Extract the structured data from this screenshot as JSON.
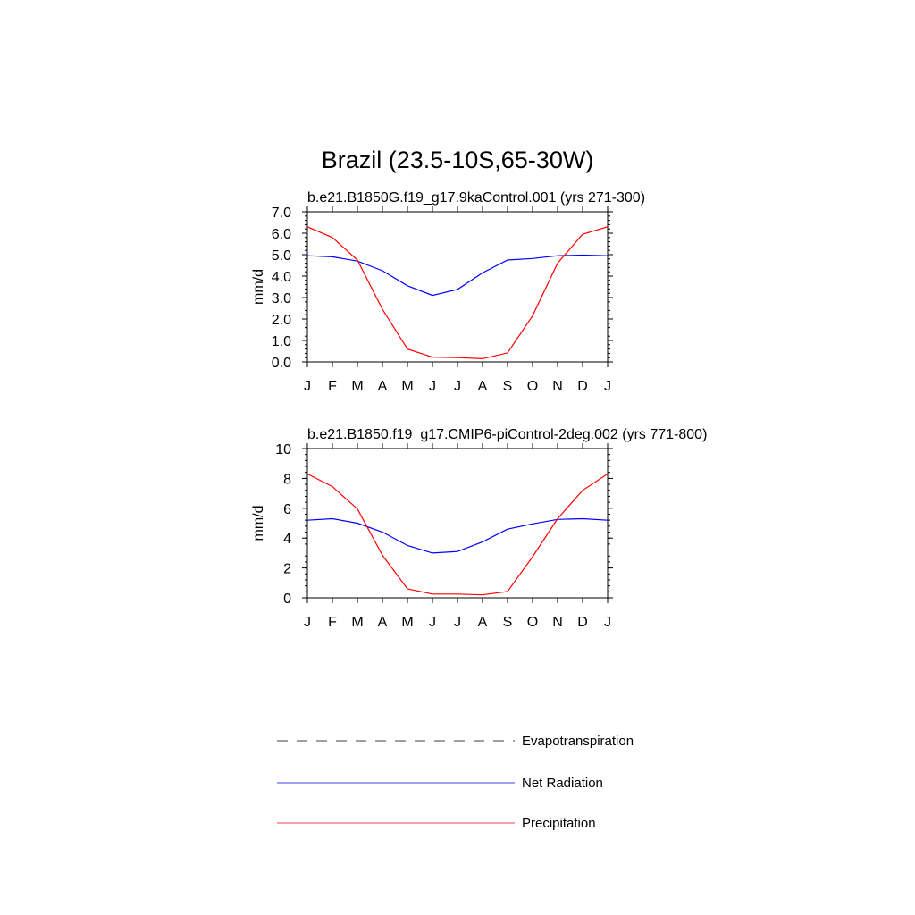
{
  "figure": {
    "title": "Brazil (23.5-10S,65-30W)"
  },
  "chart_data": [
    {
      "type": "line",
      "title": "b.e21.B1850G.f19_g17.9kaControl.001 (yrs 271-300)",
      "xlabel": "",
      "ylabel": "mm/d",
      "categories": [
        "J",
        "F",
        "M",
        "A",
        "M",
        "J",
        "J",
        "A",
        "S",
        "O",
        "N",
        "D",
        "J"
      ],
      "ylim": [
        0,
        7
      ],
      "yticks": [
        0,
        1,
        2,
        3,
        4,
        5,
        6,
        7
      ],
      "ytick_labels": [
        "0.0",
        "1.0",
        "2.0",
        "3.0",
        "4.0",
        "5.0",
        "6.0",
        "7.0"
      ],
      "grid": false,
      "series": [
        {
          "name": "Net Radiation",
          "color": "#0000ff",
          "values": [
            4.95,
            4.9,
            4.7,
            4.25,
            3.55,
            3.1,
            3.38,
            4.15,
            4.75,
            4.82,
            4.95,
            4.98,
            4.95
          ]
        },
        {
          "name": "Precipitation",
          "color": "#ff0000",
          "values": [
            6.3,
            5.8,
            4.75,
            2.45,
            0.6,
            0.22,
            0.2,
            0.15,
            0.42,
            2.15,
            4.6,
            5.95,
            6.3
          ]
        }
      ]
    },
    {
      "type": "line",
      "title": "b.e21.B1850.f19_g17.CMIP6-piControl-2deg.002 (yrs 771-800)",
      "xlabel": "",
      "ylabel": "mm/d",
      "categories": [
        "J",
        "F",
        "M",
        "A",
        "M",
        "J",
        "J",
        "A",
        "S",
        "O",
        "N",
        "D",
        "J"
      ],
      "ylim": [
        0,
        10
      ],
      "yticks": [
        0,
        2,
        4,
        6,
        8,
        10
      ],
      "ytick_labels": [
        "0",
        "2",
        "4",
        "6",
        "8",
        "10"
      ],
      "grid": false,
      "series": [
        {
          "name": "Net Radiation",
          "color": "#0000ff",
          "values": [
            5.2,
            5.3,
            5.0,
            4.4,
            3.5,
            3.0,
            3.1,
            3.75,
            4.6,
            4.95,
            5.25,
            5.3,
            5.2
          ]
        },
        {
          "name": "Precipitation",
          "color": "#ff0000",
          "values": [
            8.3,
            7.45,
            5.95,
            2.85,
            0.6,
            0.25,
            0.25,
            0.2,
            0.42,
            2.75,
            5.3,
            7.2,
            8.3
          ]
        }
      ]
    }
  ],
  "legend": {
    "items": [
      {
        "label": "Evapotranspiration",
        "color": "#000000",
        "dash": true
      },
      {
        "label": "Net Radiation",
        "color": "#0000ff",
        "dash": false
      },
      {
        "label": "Precipitation",
        "color": "#ff0000",
        "dash": false
      }
    ]
  }
}
